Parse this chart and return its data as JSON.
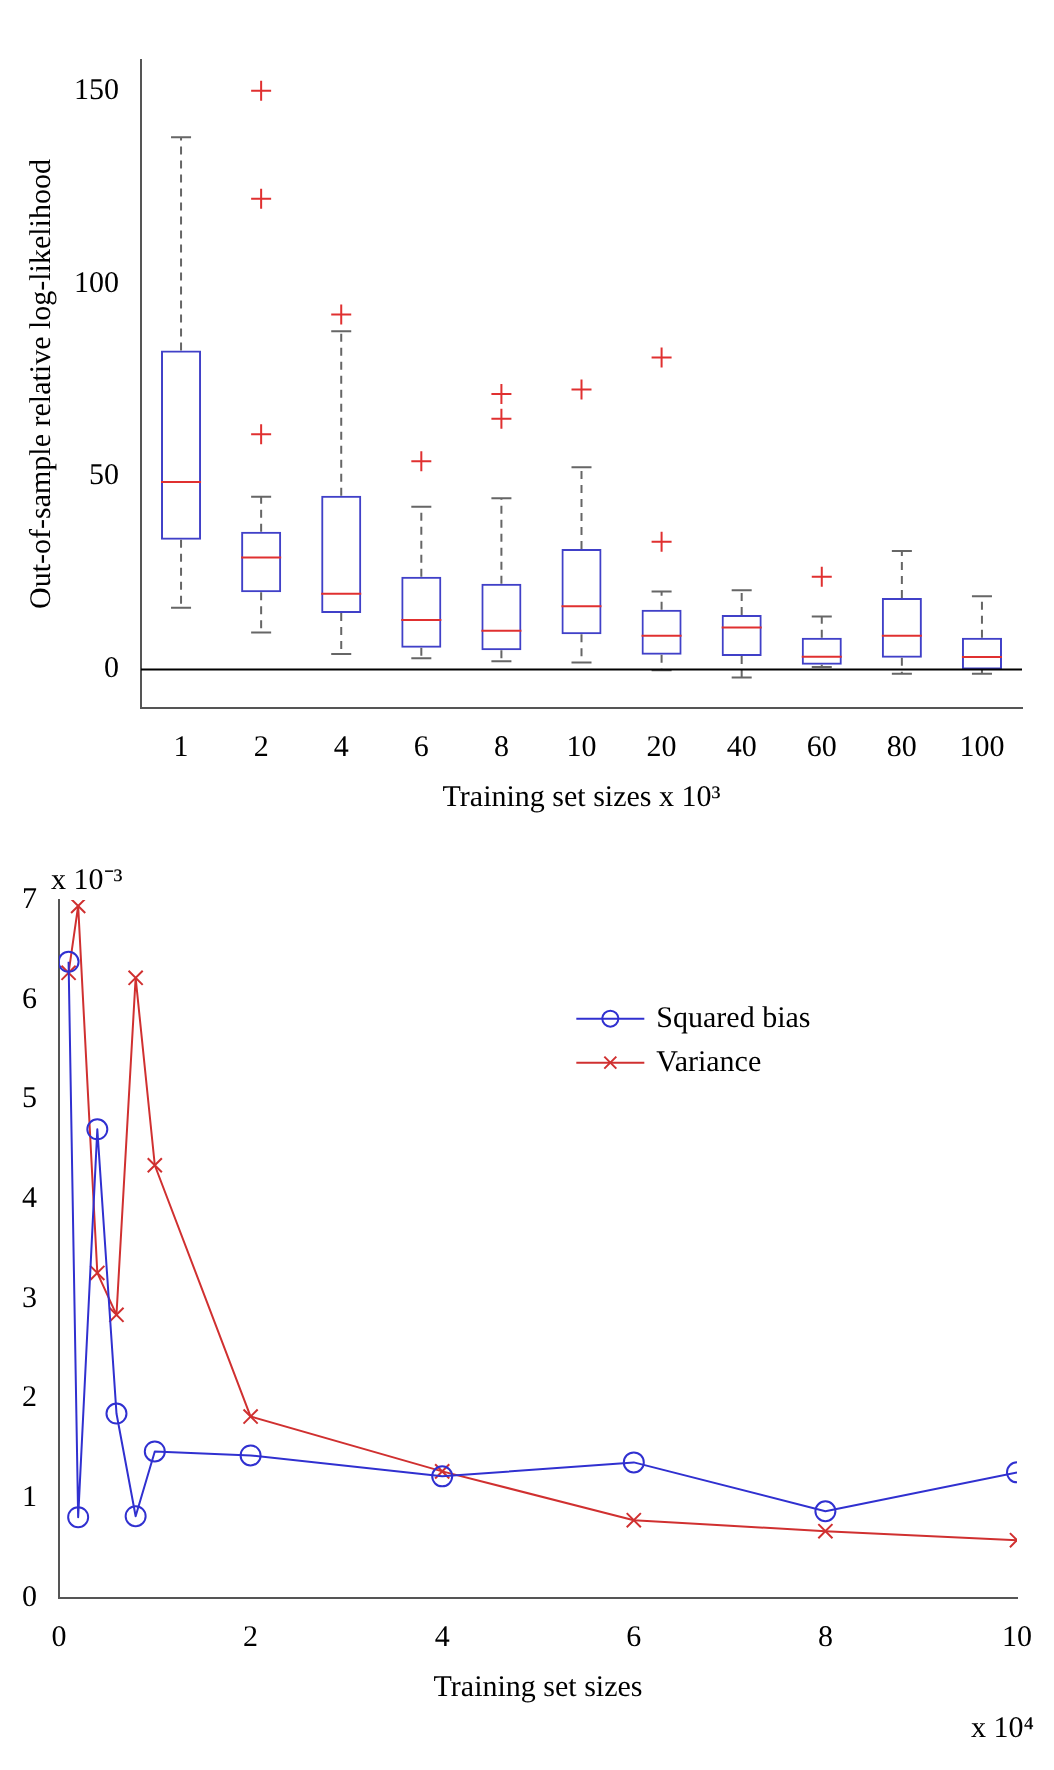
{
  "chart_data": [
    {
      "type": "box",
      "xlabel": "Training set sizes x 10³",
      "ylabel": "Out-of-sample relative log-likelihood",
      "categories": [
        "1",
        "2",
        "4",
        "6",
        "8",
        "10",
        "20",
        "40",
        "60",
        "80",
        "100"
      ],
      "ylim": [
        -10,
        158
      ],
      "yticks": [
        0,
        50,
        100,
        150
      ],
      "grid": false,
      "ref_lines": [
        {
          "axis": "y",
          "value": 0,
          "color": "#000000"
        }
      ],
      "series": [
        {
          "color": "#4040c8",
          "boxes": [
            {
              "low": 16,
              "q1": 33.6,
              "median": 48.6,
              "q3": 82.7,
              "high": 138
            },
            {
              "low": 9.6,
              "q1": 20,
              "median": 29,
              "q3": 35.7,
              "high": 44.8,
              "outliers": [
                150,
                122,
                61
              ]
            },
            {
              "low": 4,
              "q1": 14.6,
              "median": 19.6,
              "q3": 45,
              "high": 87.7,
              "outliers": [
                92
              ]
            },
            {
              "low": 2.9,
              "q1": 5.6,
              "median": 12.8,
              "q3": 24,
              "high": 42.2,
              "outliers": [
                54
              ]
            },
            {
              "low": 2.1,
              "q1": 5,
              "median": 10,
              "q3": 22.2,
              "high": 44.4,
              "outliers": [
                71.4,
                65
              ]
            },
            {
              "low": 1.8,
              "q1": 9.1,
              "median": 16.4,
              "q3": 31.2,
              "high": 52.4,
              "outliers": [
                72.6
              ]
            },
            {
              "low": -0.2,
              "q1": 3.8,
              "median": 8.7,
              "q3": 15.5,
              "high": 20.2,
              "outliers": [
                33.1,
                80.9
              ]
            },
            {
              "low": -2.1,
              "q1": 3.5,
              "median": 10.9,
              "q3": 14.1,
              "high": 20.5
            },
            {
              "low": 0.6,
              "q1": 1.2,
              "median": 3.3,
              "q3": 8.2,
              "high": 13.7,
              "outliers": [
                24
              ]
            },
            {
              "low": -1.1,
              "q1": 3,
              "median": 8.7,
              "q3": 18.5,
              "high": 30.7
            },
            {
              "low": -1.1,
              "q1": 0,
              "median": 3.2,
              "q3": 8.2,
              "high": 19
            }
          ]
        }
      ]
    },
    {
      "type": "line",
      "xlabel": "Training set sizes",
      "annotations": [
        "x 10⁻³",
        "x 10⁴"
      ],
      "xlim": [
        0,
        10
      ],
      "xticks": [
        0,
        2,
        4,
        6,
        8,
        10
      ],
      "ylim": [
        0,
        7
      ],
      "yticks": [
        0,
        1,
        2,
        3,
        4,
        5,
        6,
        7
      ],
      "grid": false,
      "legend": "top right",
      "x": [
        0.1,
        0.2,
        0.4,
        0.6,
        0.8,
        1,
        2,
        4,
        6,
        8,
        10
      ],
      "series": [
        {
          "name": "Squared bias",
          "color": "#3030d0",
          "marker": "circle",
          "values": [
            6.38,
            0.81,
            4.7,
            1.85,
            0.82,
            1.47,
            1.43,
            1.22,
            1.36,
            0.87,
            1.26
          ]
        },
        {
          "name": "Variance",
          "color": "#d03030",
          "marker": "cross",
          "values": [
            6.27,
            6.94,
            3.26,
            2.84,
            6.22,
            4.34,
            1.82,
            1.27,
            0.78,
            0.67,
            0.58
          ]
        }
      ]
    }
  ]
}
